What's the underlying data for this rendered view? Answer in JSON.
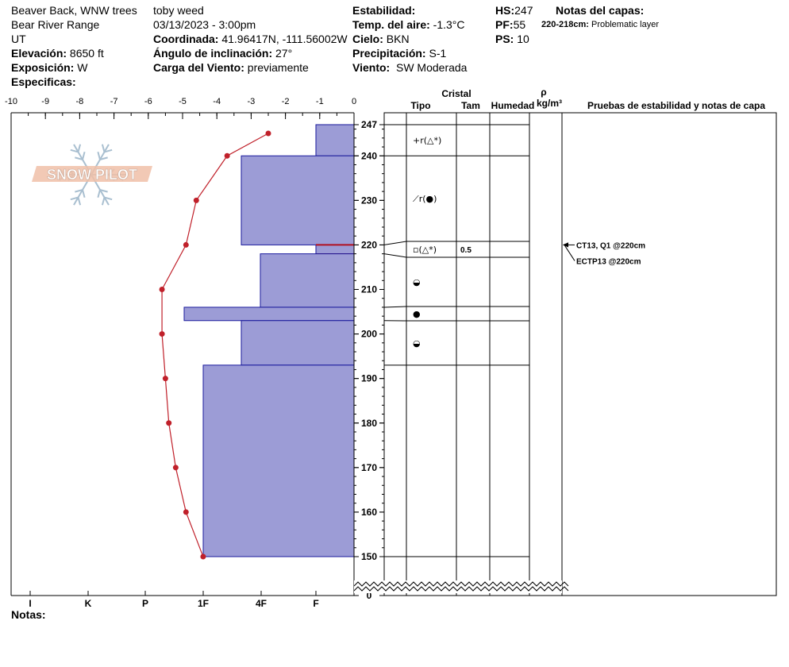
{
  "header": {
    "location": "Beaver Back, WNW trees",
    "range": "Bear River Range",
    "state": "UT",
    "elevation_label": "Elevación:",
    "elevation_value": "8650 ft",
    "aspect_label": "Exposición:",
    "aspect_value": "W",
    "specifics_label": "Especificas:",
    "observer": "toby weed",
    "datetime": "03/13/2023 - 3:00pm",
    "coord_label": "Coordinada:",
    "coord_value": "41.96417N, -111.56002W",
    "slope_label": "Ángulo de inclinación:",
    "slope_value": "27°",
    "wind_load_label": "Carga del Viento:",
    "wind_load_value": "previamente",
    "stability_label": "Estabilidad:",
    "air_temp_label": "Temp. del aire:",
    "air_temp_value": "-1.3°C",
    "sky_label": "Cielo:",
    "sky_value": "BKN",
    "precip_label": "Precipitación:",
    "precip_value": "S-1",
    "wind_label": "Viento:",
    "wind_value": "SW Moderada",
    "hs_label": "HS:",
    "hs_value": "247",
    "pf_label": "PF:",
    "pf_value": "55",
    "ps_label": "PS:",
    "ps_value": "10",
    "layer_notes_label": "Notas del capas:",
    "layer_note_depth": "220-218cm:",
    "layer_note_text": "Problematic layer"
  },
  "columns": {
    "crystal": "Cristal",
    "type": "Tipo",
    "size": "Tam",
    "humidity": "Humedad",
    "density_symbol": "ρ",
    "density_unit": "kg/m³",
    "tests": "Pruebas de estabilidad y notas de capa"
  },
  "footer": {
    "notes_label": "Notas:"
  },
  "logo": {
    "text": "SNOW PILOT"
  },
  "colors": {
    "hardness_fill": "#9c9cd6",
    "hardness_stroke": "#1a1a9c",
    "temp_line": "#c0202a",
    "weak_layer": "#b01020",
    "logo_orange": "#f0c0a8",
    "logo_blue": "#a9bfd0"
  },
  "chart_data": {
    "type": "snow-profile",
    "temperature_axis": {
      "label_ticks": [
        "-10",
        "-9",
        "-8",
        "-7",
        "-6",
        "-5",
        "-4",
        "-3",
        "-2",
        "-1",
        "0"
      ],
      "range": [
        -10,
        0
      ]
    },
    "height_axis": {
      "ticks": [
        "247",
        "240",
        "230",
        "220",
        "210",
        "200",
        "190",
        "180",
        "170",
        "160",
        "150",
        "0"
      ],
      "range_cm": [
        150,
        247
      ],
      "broken_below": 150
    },
    "hardness_axis": {
      "ticks": [
        "I",
        "K",
        "P",
        "1F",
        "4F",
        "F"
      ]
    },
    "hardness_layers": [
      {
        "top": 247,
        "bottom": 240,
        "hardness": "F"
      },
      {
        "top": 240,
        "bottom": 220,
        "hardness": "4F+"
      },
      {
        "top": 220,
        "bottom": 218,
        "hardness": "F",
        "weak_layer": true
      },
      {
        "top": 218,
        "bottom": 206,
        "hardness": "4F-"
      },
      {
        "top": 206,
        "bottom": 203,
        "hardness": "1F+"
      },
      {
        "top": 203,
        "bottom": 193,
        "hardness": "4F+"
      },
      {
        "top": 193,
        "bottom": 150,
        "hardness": "1F"
      }
    ],
    "temperature_profile": [
      {
        "height": 247,
        "temp": -2.5
      },
      {
        "height": 240,
        "temp": -3.7
      },
      {
        "height": 230,
        "temp": -4.6
      },
      {
        "height": 220,
        "temp": -4.9
      },
      {
        "height": 210,
        "temp": -5.6
      },
      {
        "height": 200,
        "temp": -5.6
      },
      {
        "height": 190,
        "temp": -5.5
      },
      {
        "height": 180,
        "temp": -5.4
      },
      {
        "height": 170,
        "temp": -5.2
      },
      {
        "height": 160,
        "temp": -4.9
      },
      {
        "height": 150,
        "temp": -4.4
      }
    ],
    "crystal_rows": [
      {
        "top": 247,
        "bottom": 240,
        "symbol": "+r(△*)",
        "size": ""
      },
      {
        "top": 240,
        "bottom": 220,
        "symbol": "⟋r(●)",
        "size": ""
      },
      {
        "top": 220,
        "bottom": 218,
        "symbol": "▫(△*)",
        "size": "0.5"
      },
      {
        "top": 218,
        "bottom": 206,
        "symbol": "◒",
        "size": ""
      },
      {
        "top": 206,
        "bottom": 203,
        "symbol": "●",
        "size": ""
      },
      {
        "top": 203,
        "bottom": 193,
        "symbol": "◒",
        "size": ""
      },
      {
        "top": 193,
        "bottom": 150,
        "symbol": "",
        "size": ""
      }
    ],
    "stability_tests": [
      {
        "text": "CT13, Q1 @220cm",
        "height": 220
      },
      {
        "text": "ECTP13 @220cm",
        "height": 220
      }
    ]
  }
}
